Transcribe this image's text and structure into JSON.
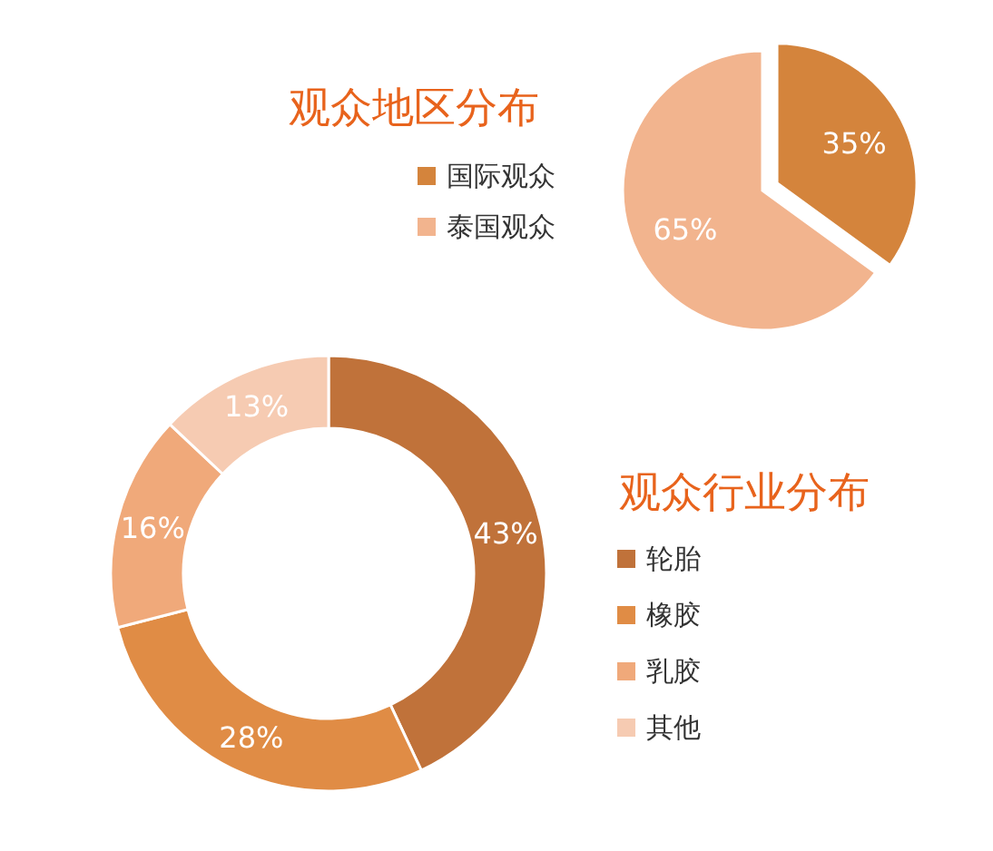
{
  "chart_data": [
    {
      "type": "pie",
      "title": "观众地区分布",
      "categories": [
        "国际观众",
        "泰国观众"
      ],
      "values": [
        35,
        65
      ],
      "colors": [
        "#d4843c",
        "#f2b48e"
      ],
      "value_labels": [
        "35%",
        "65%"
      ],
      "legend": "left"
    },
    {
      "type": "donut",
      "title": "观众行业分布",
      "categories": [
        "轮胎",
        "橡胶",
        "乳胶",
        "其他"
      ],
      "values": [
        43,
        28,
        16,
        13
      ],
      "colors": [
        "#c0723a",
        "#e08c45",
        "#f0a97a",
        "#f6cbb2"
      ],
      "value_labels": [
        "43%",
        "28%",
        "16%",
        "13%"
      ],
      "legend": "right"
    }
  ]
}
